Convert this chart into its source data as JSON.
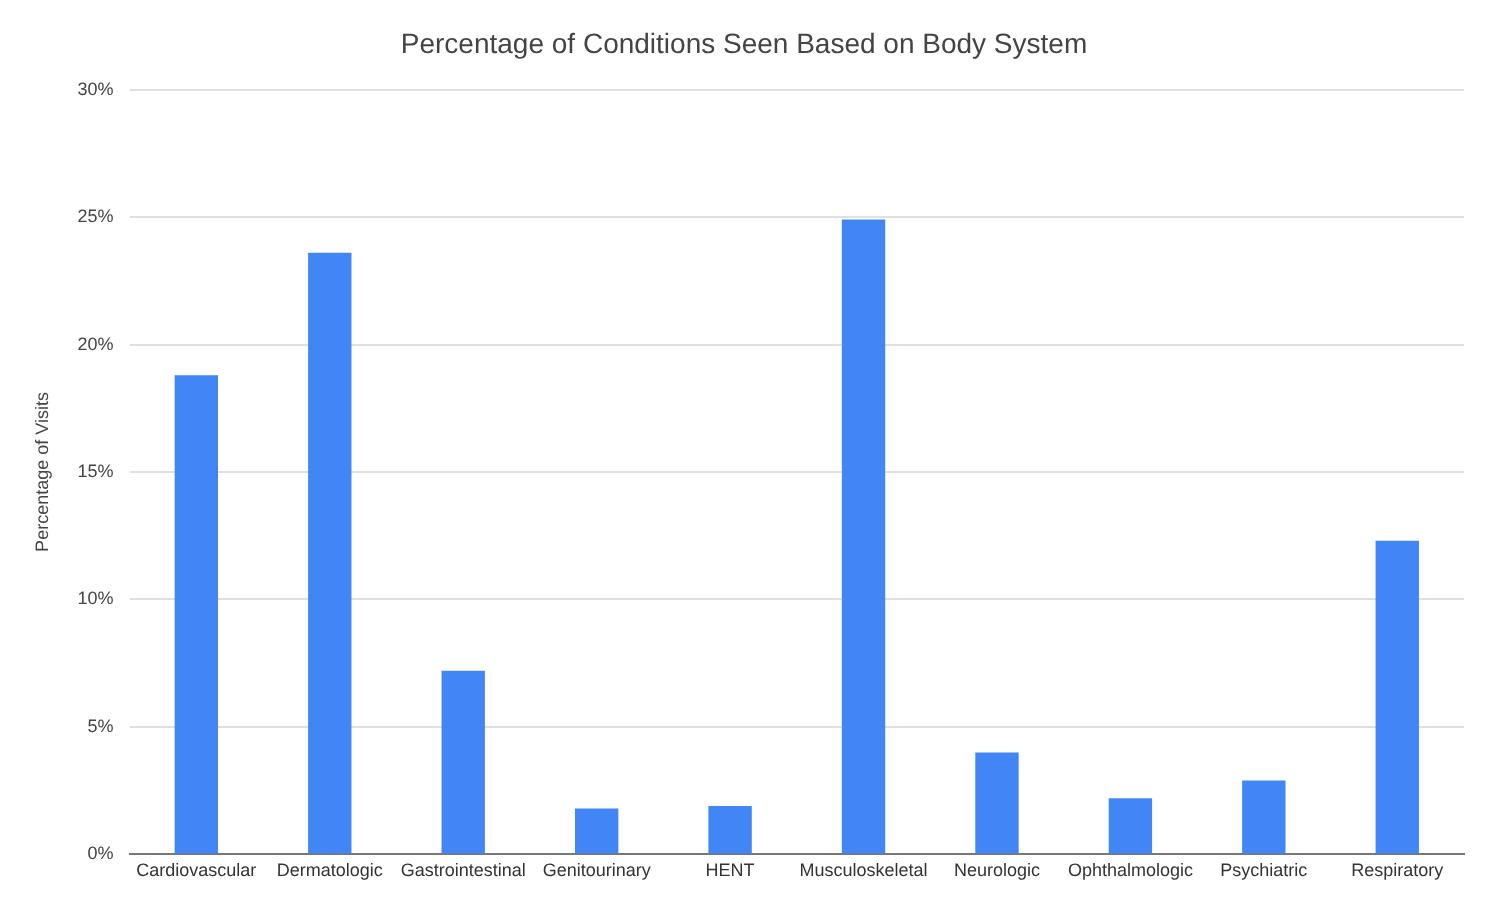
{
  "chart_data": {
    "type": "bar",
    "title": "Percentage of Conditions Seen Based on Body System",
    "ylabel": "Percentage of Visits",
    "categories": [
      "Cardiovascular",
      "Dermatologic",
      "Gastrointestinal",
      "Genitourinary",
      "HENT",
      "Musculoskeletal",
      "Neurologic",
      "Ophthalmologic",
      "Psychiatric",
      "Respiratory"
    ],
    "values": [
      18.8,
      23.6,
      7.2,
      1.8,
      1.9,
      24.9,
      4.0,
      2.2,
      2.9,
      12.3
    ],
    "color": "#4285f4",
    "ylim": [
      0,
      30
    ],
    "yticks": [
      {
        "value": 0,
        "label": "0%"
      },
      {
        "value": 5,
        "label": "5%"
      },
      {
        "value": 10,
        "label": "10%"
      },
      {
        "value": 15,
        "label": "15%"
      },
      {
        "value": 20,
        "label": "20%"
      },
      {
        "value": 25,
        "label": "25%"
      },
      {
        "value": 30,
        "label": "30%"
      }
    ],
    "grid": "y",
    "legend": false
  }
}
